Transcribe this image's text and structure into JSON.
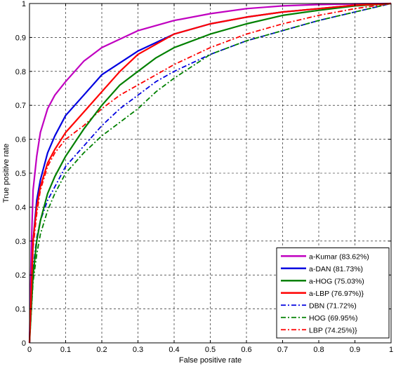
{
  "chart_data": {
    "type": "line",
    "title": "",
    "xlabel": "False positive rate",
    "ylabel": "True positive rate",
    "xlim": [
      0,
      1
    ],
    "ylim": [
      0,
      1
    ],
    "x_ticks": [
      "0",
      "0.1",
      "0.2",
      "0.3",
      "0.4",
      "0.5",
      "0.6",
      "0.7",
      "0.8",
      "0.9",
      "1"
    ],
    "y_ticks": [
      "0",
      "0.1",
      "0.2",
      "0.3",
      "0.4",
      "0.5",
      "0.6",
      "0.7",
      "0.8",
      "0.9",
      "1"
    ],
    "grid": true,
    "legend_position": "bottom-right",
    "series": [
      {
        "name": "a-Kumar (83.62%)",
        "color": "#c000c0",
        "style": "solid",
        "x": [
          0,
          0.005,
          0.01,
          0.02,
          0.03,
          0.05,
          0.07,
          0.1,
          0.15,
          0.2,
          0.3,
          0.4,
          0.5,
          0.6,
          0.7,
          0.8,
          0.9,
          1.0
        ],
        "y": [
          0,
          0.28,
          0.45,
          0.55,
          0.62,
          0.69,
          0.73,
          0.77,
          0.83,
          0.87,
          0.92,
          0.95,
          0.97,
          0.985,
          0.993,
          0.997,
          0.999,
          1.0
        ]
      },
      {
        "name": "a-DAN (81.73%)",
        "color": "#0000e0",
        "style": "solid",
        "x": [
          0,
          0.01,
          0.02,
          0.03,
          0.05,
          0.07,
          0.1,
          0.15,
          0.2,
          0.3,
          0.4,
          0.5,
          0.6,
          0.7,
          0.8,
          0.9,
          1.0
        ],
        "y": [
          0,
          0.3,
          0.42,
          0.48,
          0.56,
          0.61,
          0.67,
          0.73,
          0.79,
          0.86,
          0.91,
          0.94,
          0.96,
          0.975,
          0.985,
          0.995,
          1.0
        ]
      },
      {
        "name": "a-HOG (75.03%)",
        "color": "#008000",
        "style": "solid",
        "x": [
          0,
          0.01,
          0.02,
          0.03,
          0.05,
          0.07,
          0.1,
          0.15,
          0.2,
          0.25,
          0.3,
          0.35,
          0.4,
          0.5,
          0.6,
          0.7,
          0.8,
          0.9,
          1.0
        ],
        "y": [
          0,
          0.2,
          0.3,
          0.36,
          0.44,
          0.49,
          0.55,
          0.63,
          0.7,
          0.76,
          0.8,
          0.84,
          0.87,
          0.91,
          0.94,
          0.965,
          0.98,
          0.993,
          1.0
        ]
      },
      {
        "name": "a-LBP (76.97%)}",
        "color": "#ff0000",
        "style": "solid",
        "x": [
          0,
          0.01,
          0.02,
          0.03,
          0.05,
          0.07,
          0.1,
          0.15,
          0.2,
          0.25,
          0.3,
          0.35,
          0.4,
          0.5,
          0.6,
          0.7,
          0.8,
          0.9,
          1.0
        ],
        "y": [
          0,
          0.3,
          0.4,
          0.46,
          0.53,
          0.57,
          0.62,
          0.68,
          0.74,
          0.8,
          0.85,
          0.88,
          0.91,
          0.94,
          0.96,
          0.975,
          0.985,
          0.995,
          1.0
        ]
      },
      {
        "name": "DBN (71.72%)",
        "color": "#0000e0",
        "style": "dashdot",
        "x": [
          0,
          0.01,
          0.02,
          0.03,
          0.05,
          0.07,
          0.1,
          0.15,
          0.2,
          0.25,
          0.3,
          0.35,
          0.4,
          0.5,
          0.6,
          0.7,
          0.8,
          0.9,
          1.0
        ],
        "y": [
          0,
          0.22,
          0.31,
          0.36,
          0.42,
          0.46,
          0.52,
          0.58,
          0.64,
          0.69,
          0.73,
          0.77,
          0.8,
          0.85,
          0.89,
          0.92,
          0.95,
          0.975,
          1.0
        ]
      },
      {
        "name": "HOG (69.95%)",
        "color": "#008000",
        "style": "dashdot",
        "x": [
          0,
          0.01,
          0.02,
          0.03,
          0.05,
          0.07,
          0.1,
          0.15,
          0.2,
          0.25,
          0.3,
          0.35,
          0.4,
          0.5,
          0.6,
          0.7,
          0.8,
          0.9,
          1.0
        ],
        "y": [
          0,
          0.18,
          0.26,
          0.32,
          0.39,
          0.44,
          0.5,
          0.56,
          0.61,
          0.65,
          0.69,
          0.74,
          0.78,
          0.85,
          0.89,
          0.92,
          0.95,
          0.975,
          1.0
        ]
      },
      {
        "name": "LBP (74.25%)}",
        "color": "#ff0000",
        "style": "dashdot",
        "x": [
          0,
          0.01,
          0.02,
          0.03,
          0.05,
          0.07,
          0.1,
          0.15,
          0.2,
          0.25,
          0.3,
          0.35,
          0.4,
          0.5,
          0.6,
          0.7,
          0.8,
          0.9,
          1.0
        ],
        "y": [
          0,
          0.28,
          0.38,
          0.45,
          0.52,
          0.56,
          0.6,
          0.64,
          0.69,
          0.73,
          0.76,
          0.79,
          0.82,
          0.87,
          0.91,
          0.94,
          0.965,
          0.985,
          1.0
        ]
      }
    ]
  }
}
